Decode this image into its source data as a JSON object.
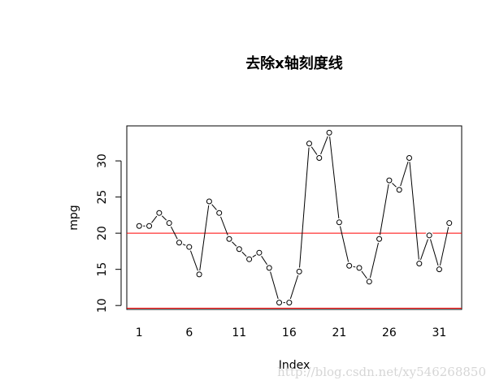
{
  "chart_data": {
    "type": "line",
    "title": "去除x轴刻度线",
    "xlabel": "Index",
    "ylabel": "mpg",
    "x": [
      1,
      2,
      3,
      4,
      5,
      6,
      7,
      8,
      9,
      10,
      11,
      12,
      13,
      14,
      15,
      16,
      17,
      18,
      19,
      20,
      21,
      22,
      23,
      24,
      25,
      26,
      27,
      28,
      29,
      30,
      31,
      32
    ],
    "values": [
      21.0,
      21.0,
      22.8,
      21.4,
      18.7,
      18.1,
      14.3,
      24.4,
      22.8,
      19.2,
      17.8,
      16.4,
      17.3,
      15.2,
      10.4,
      10.4,
      14.7,
      32.4,
      30.4,
      33.9,
      21.5,
      15.5,
      15.2,
      13.3,
      19.2,
      27.3,
      26.0,
      30.4,
      15.8,
      19.7,
      15.0,
      21.4
    ],
    "color": "#000000",
    "xlim": [
      -0.24,
      33.24
    ],
    "ylim": [
      9.46,
      34.84
    ],
    "xticks": [
      1,
      6,
      11,
      16,
      21,
      26,
      31
    ],
    "yticks": [
      10,
      15,
      20,
      25,
      30
    ],
    "hline": 20,
    "hline_color": "#ff0000",
    "x_axis_color": "#ff0000",
    "watermark": "http://blog.csdn.net/xy546268850"
  }
}
